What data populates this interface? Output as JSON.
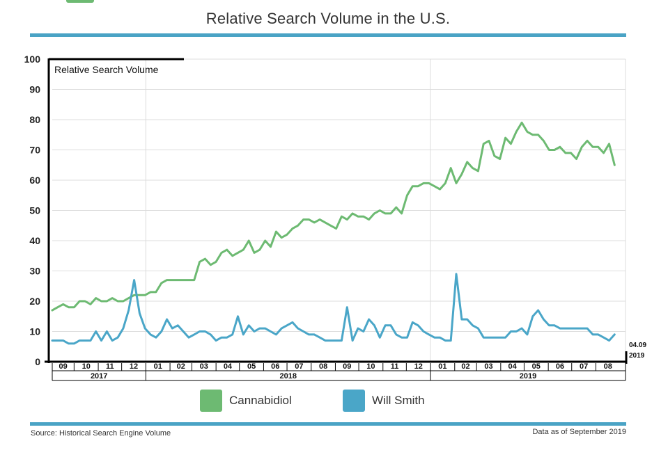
{
  "title": "Relative Search Volume in the U.S.",
  "colors": {
    "cannabidiol": "#6dba72",
    "will_smith": "#4aa6c8",
    "rule": "#4aa3c5",
    "grid": "#dcdcdc"
  },
  "footer": {
    "source": "Source: Historical Search Engine Volume",
    "as_of": "Data as of September 2019"
  },
  "chart_data": {
    "type": "line",
    "ylabel": "Relative Search Volume",
    "ylim": [
      0,
      100
    ],
    "yticks": [
      0,
      10,
      20,
      30,
      40,
      50,
      60,
      70,
      80,
      90,
      100
    ],
    "xlim": [
      "2017-09-03",
      "2019-09-08"
    ],
    "month_ticks": [
      {
        "label": "09",
        "start": "2017-09-01",
        "end": "2017-10-01"
      },
      {
        "label": "10",
        "start": "2017-10-01",
        "end": "2017-11-01"
      },
      {
        "label": "11",
        "start": "2017-11-01",
        "end": "2017-12-01"
      },
      {
        "label": "12",
        "start": "2017-12-01",
        "end": "2018-01-01"
      },
      {
        "label": "01",
        "start": "2018-01-01",
        "end": "2018-02-01"
      },
      {
        "label": "02",
        "start": "2018-02-01",
        "end": "2018-03-01"
      },
      {
        "label": "03",
        "start": "2018-03-01",
        "end": "2018-04-01"
      },
      {
        "label": "04",
        "start": "2018-04-01",
        "end": "2018-05-01"
      },
      {
        "label": "05",
        "start": "2018-05-01",
        "end": "2018-06-01"
      },
      {
        "label": "06",
        "start": "2018-06-01",
        "end": "2018-07-01"
      },
      {
        "label": "07",
        "start": "2018-07-01",
        "end": "2018-08-01"
      },
      {
        "label": "08",
        "start": "2018-08-01",
        "end": "2018-09-01"
      },
      {
        "label": "09",
        "start": "2018-09-01",
        "end": "2018-10-01"
      },
      {
        "label": "10",
        "start": "2018-10-01",
        "end": "2018-11-01"
      },
      {
        "label": "11",
        "start": "2018-11-01",
        "end": "2018-12-01"
      },
      {
        "label": "12",
        "start": "2018-12-01",
        "end": "2019-01-01"
      },
      {
        "label": "01",
        "start": "2019-01-01",
        "end": "2019-02-01"
      },
      {
        "label": "02",
        "start": "2019-02-01",
        "end": "2019-03-01"
      },
      {
        "label": "03",
        "start": "2019-03-01",
        "end": "2019-04-01"
      },
      {
        "label": "04",
        "start": "2019-04-01",
        "end": "2019-05-01"
      },
      {
        "label": "05",
        "start": "2019-05-01",
        "end": "2019-06-01"
      },
      {
        "label": "06",
        "start": "2019-06-01",
        "end": "2019-07-01"
      },
      {
        "label": "07",
        "start": "2019-07-01",
        "end": "2019-08-01"
      },
      {
        "label": "08",
        "start": "2019-08-01",
        "end": "2019-09-01"
      }
    ],
    "year_ticks": [
      {
        "label": "2017",
        "start": "2017-09-01",
        "end": "2018-01-01"
      },
      {
        "label": "2018",
        "start": "2018-01-01",
        "end": "2019-01-01"
      },
      {
        "label": "2019",
        "start": "2019-01-01",
        "end": "2019-09-08"
      }
    ],
    "end_annotation": [
      "04.09",
      "2019"
    ],
    "series": [
      {
        "name": "Cannabidiol",
        "color": "#6dba72",
        "points": [
          [
            "2017-09-03",
            17
          ],
          [
            "2017-09-10",
            18
          ],
          [
            "2017-09-17",
            19
          ],
          [
            "2017-09-24",
            18
          ],
          [
            "2017-10-01",
            18
          ],
          [
            "2017-10-08",
            20
          ],
          [
            "2017-10-15",
            20
          ],
          [
            "2017-10-22",
            19
          ],
          [
            "2017-10-29",
            21
          ],
          [
            "2017-11-05",
            20
          ],
          [
            "2017-11-12",
            20
          ],
          [
            "2017-11-19",
            21
          ],
          [
            "2017-11-26",
            20
          ],
          [
            "2017-12-03",
            20
          ],
          [
            "2017-12-10",
            21
          ],
          [
            "2017-12-17",
            22
          ],
          [
            "2017-12-24",
            22
          ],
          [
            "2017-12-31",
            22
          ],
          [
            "2018-01-07",
            23
          ],
          [
            "2018-01-14",
            23
          ],
          [
            "2018-01-21",
            26
          ],
          [
            "2018-01-28",
            27
          ],
          [
            "2018-02-04",
            27
          ],
          [
            "2018-02-11",
            27
          ],
          [
            "2018-02-18",
            27
          ],
          [
            "2018-02-25",
            27
          ],
          [
            "2018-03-04",
            27
          ],
          [
            "2018-03-11",
            33
          ],
          [
            "2018-03-18",
            34
          ],
          [
            "2018-03-25",
            32
          ],
          [
            "2018-04-01",
            33
          ],
          [
            "2018-04-08",
            36
          ],
          [
            "2018-04-15",
            37
          ],
          [
            "2018-04-22",
            35
          ],
          [
            "2018-04-29",
            36
          ],
          [
            "2018-05-06",
            37
          ],
          [
            "2018-05-13",
            40
          ],
          [
            "2018-05-20",
            36
          ],
          [
            "2018-05-27",
            37
          ],
          [
            "2018-06-03",
            40
          ],
          [
            "2018-06-10",
            38
          ],
          [
            "2018-06-17",
            43
          ],
          [
            "2018-06-24",
            41
          ],
          [
            "2018-07-01",
            42
          ],
          [
            "2018-07-08",
            44
          ],
          [
            "2018-07-15",
            45
          ],
          [
            "2018-07-22",
            47
          ],
          [
            "2018-07-29",
            47
          ],
          [
            "2018-08-05",
            46
          ],
          [
            "2018-08-12",
            47
          ],
          [
            "2018-08-19",
            46
          ],
          [
            "2018-08-26",
            45
          ],
          [
            "2018-09-02",
            44
          ],
          [
            "2018-09-09",
            48
          ],
          [
            "2018-09-16",
            47
          ],
          [
            "2018-09-23",
            49
          ],
          [
            "2018-09-30",
            48
          ],
          [
            "2018-10-07",
            48
          ],
          [
            "2018-10-14",
            47
          ],
          [
            "2018-10-21",
            49
          ],
          [
            "2018-10-28",
            50
          ],
          [
            "2018-11-04",
            49
          ],
          [
            "2018-11-11",
            49
          ],
          [
            "2018-11-18",
            51
          ],
          [
            "2018-11-25",
            49
          ],
          [
            "2018-12-02",
            55
          ],
          [
            "2018-12-09",
            58
          ],
          [
            "2018-12-16",
            58
          ],
          [
            "2018-12-23",
            59
          ],
          [
            "2018-12-30",
            59
          ],
          [
            "2019-01-06",
            58
          ],
          [
            "2019-01-13",
            57
          ],
          [
            "2019-01-20",
            59
          ],
          [
            "2019-01-27",
            64
          ],
          [
            "2019-02-03",
            59
          ],
          [
            "2019-02-10",
            62
          ],
          [
            "2019-02-17",
            66
          ],
          [
            "2019-02-24",
            64
          ],
          [
            "2019-03-03",
            63
          ],
          [
            "2019-03-10",
            72
          ],
          [
            "2019-03-17",
            73
          ],
          [
            "2019-03-24",
            68
          ],
          [
            "2019-03-31",
            67
          ],
          [
            "2019-04-07",
            74
          ],
          [
            "2019-04-14",
            72
          ],
          [
            "2019-04-21",
            76
          ],
          [
            "2019-04-28",
            79
          ],
          [
            "2019-05-05",
            76
          ],
          [
            "2019-05-12",
            75
          ],
          [
            "2019-05-19",
            75
          ],
          [
            "2019-05-26",
            73
          ],
          [
            "2019-06-02",
            70
          ],
          [
            "2019-06-09",
            70
          ],
          [
            "2019-06-16",
            71
          ],
          [
            "2019-06-23",
            69
          ],
          [
            "2019-06-30",
            69
          ],
          [
            "2019-07-07",
            67
          ],
          [
            "2019-07-14",
            71
          ],
          [
            "2019-07-21",
            73
          ],
          [
            "2019-07-28",
            71
          ],
          [
            "2019-08-04",
            71
          ],
          [
            "2019-08-11",
            69
          ],
          [
            "2019-08-18",
            72
          ],
          [
            "2019-08-25",
            65
          ]
        ]
      },
      {
        "name": "Will Smith",
        "color": "#4aa6c8",
        "points": [
          [
            "2017-09-03",
            7
          ],
          [
            "2017-09-10",
            7
          ],
          [
            "2017-09-17",
            7
          ],
          [
            "2017-09-24",
            6
          ],
          [
            "2017-10-01",
            6
          ],
          [
            "2017-10-08",
            7
          ],
          [
            "2017-10-15",
            7
          ],
          [
            "2017-10-22",
            7
          ],
          [
            "2017-10-29",
            10
          ],
          [
            "2017-11-05",
            7
          ],
          [
            "2017-11-12",
            10
          ],
          [
            "2017-11-19",
            7
          ],
          [
            "2017-11-26",
            8
          ],
          [
            "2017-12-03",
            11
          ],
          [
            "2017-12-10",
            17
          ],
          [
            "2017-12-17",
            27
          ],
          [
            "2017-12-24",
            16
          ],
          [
            "2017-12-31",
            11
          ],
          [
            "2018-01-07",
            9
          ],
          [
            "2018-01-14",
            8
          ],
          [
            "2018-01-21",
            10
          ],
          [
            "2018-01-28",
            14
          ],
          [
            "2018-02-04",
            11
          ],
          [
            "2018-02-11",
            12
          ],
          [
            "2018-02-18",
            10
          ],
          [
            "2018-02-25",
            8
          ],
          [
            "2018-03-04",
            9
          ],
          [
            "2018-03-11",
            10
          ],
          [
            "2018-03-18",
            10
          ],
          [
            "2018-03-25",
            9
          ],
          [
            "2018-04-01",
            7
          ],
          [
            "2018-04-08",
            8
          ],
          [
            "2018-04-15",
            8
          ],
          [
            "2018-04-22",
            9
          ],
          [
            "2018-04-29",
            15
          ],
          [
            "2018-05-06",
            9
          ],
          [
            "2018-05-13",
            12
          ],
          [
            "2018-05-20",
            10
          ],
          [
            "2018-05-27",
            11
          ],
          [
            "2018-06-03",
            11
          ],
          [
            "2018-06-10",
            10
          ],
          [
            "2018-06-17",
            9
          ],
          [
            "2018-06-24",
            11
          ],
          [
            "2018-07-01",
            12
          ],
          [
            "2018-07-08",
            13
          ],
          [
            "2018-07-15",
            11
          ],
          [
            "2018-07-22",
            10
          ],
          [
            "2018-07-29",
            9
          ],
          [
            "2018-08-05",
            9
          ],
          [
            "2018-08-12",
            8
          ],
          [
            "2018-08-19",
            7
          ],
          [
            "2018-08-26",
            7
          ],
          [
            "2018-09-02",
            7
          ],
          [
            "2018-09-09",
            7
          ],
          [
            "2018-09-16",
            18
          ],
          [
            "2018-09-23",
            7
          ],
          [
            "2018-09-30",
            11
          ],
          [
            "2018-10-07",
            10
          ],
          [
            "2018-10-14",
            14
          ],
          [
            "2018-10-21",
            12
          ],
          [
            "2018-10-28",
            8
          ],
          [
            "2018-11-04",
            12
          ],
          [
            "2018-11-11",
            12
          ],
          [
            "2018-11-18",
            9
          ],
          [
            "2018-11-25",
            8
          ],
          [
            "2018-12-02",
            8
          ],
          [
            "2018-12-09",
            13
          ],
          [
            "2018-12-16",
            12
          ],
          [
            "2018-12-23",
            10
          ],
          [
            "2018-12-30",
            9
          ],
          [
            "2019-01-06",
            8
          ],
          [
            "2019-01-13",
            8
          ],
          [
            "2019-01-20",
            7
          ],
          [
            "2019-01-27",
            7
          ],
          [
            "2019-02-03",
            29
          ],
          [
            "2019-02-10",
            14
          ],
          [
            "2019-02-17",
            14
          ],
          [
            "2019-02-24",
            12
          ],
          [
            "2019-03-03",
            11
          ],
          [
            "2019-03-10",
            8
          ],
          [
            "2019-03-17",
            8
          ],
          [
            "2019-03-24",
            8
          ],
          [
            "2019-03-31",
            8
          ],
          [
            "2019-04-07",
            8
          ],
          [
            "2019-04-14",
            10
          ],
          [
            "2019-04-21",
            10
          ],
          [
            "2019-04-28",
            11
          ],
          [
            "2019-05-05",
            9
          ],
          [
            "2019-05-12",
            15
          ],
          [
            "2019-05-19",
            17
          ],
          [
            "2019-05-26",
            14
          ],
          [
            "2019-06-02",
            12
          ],
          [
            "2019-06-09",
            12
          ],
          [
            "2019-06-16",
            11
          ],
          [
            "2019-06-23",
            11
          ],
          [
            "2019-06-30",
            11
          ],
          [
            "2019-07-07",
            11
          ],
          [
            "2019-07-14",
            11
          ],
          [
            "2019-07-21",
            11
          ],
          [
            "2019-07-28",
            9
          ],
          [
            "2019-08-04",
            9
          ],
          [
            "2019-08-11",
            8
          ],
          [
            "2019-08-18",
            7
          ],
          [
            "2019-08-25",
            9
          ]
        ]
      }
    ]
  }
}
